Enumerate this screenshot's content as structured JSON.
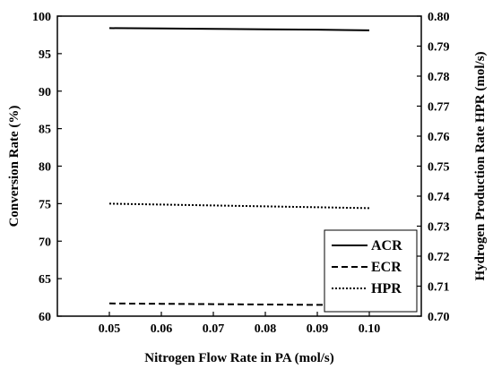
{
  "chart_data": {
    "type": "line",
    "xlabel": "Nitrogen Flow Rate in PA (mol/s)",
    "ylabel_left": "Conversion Rate (%)",
    "ylabel_right": "Hydrogen Production Rate HPR (mol/s)",
    "xlim": [
      0.04,
      0.11
    ],
    "ylim_left": [
      60,
      100
    ],
    "ylim_right": [
      0.7,
      0.8
    ],
    "x_ticks": [
      "0.05",
      "0.06",
      "0.07",
      "0.08",
      "0.09",
      "0.10"
    ],
    "x_tick_values": [
      0.05,
      0.06,
      0.07,
      0.08,
      0.09,
      0.1
    ],
    "y_left_ticks": [
      "60",
      "65",
      "70",
      "75",
      "80",
      "85",
      "90",
      "95",
      "100"
    ],
    "y_left_tick_values": [
      60,
      65,
      70,
      75,
      80,
      85,
      90,
      95,
      100
    ],
    "y_right_ticks": [
      "0.70",
      "0.71",
      "0.72",
      "0.73",
      "0.74",
      "0.75",
      "0.76",
      "0.77",
      "0.78",
      "0.79",
      "0.80"
    ],
    "y_right_tick_values": [
      0.7,
      0.71,
      0.72,
      0.73,
      0.74,
      0.75,
      0.76,
      0.77,
      0.78,
      0.79,
      0.8
    ],
    "grid": false,
    "legend_position": "bottom-right",
    "series": [
      {
        "name": "ACR",
        "axis": "left",
        "style": "solid",
        "x": [
          0.05,
          0.06,
          0.07,
          0.08,
          0.09,
          0.1
        ],
        "y": [
          98.4,
          98.35,
          98.3,
          98.25,
          98.2,
          98.1
        ]
      },
      {
        "name": "ECR",
        "axis": "left",
        "style": "dashed",
        "x": [
          0.05,
          0.06,
          0.07,
          0.08,
          0.09,
          0.1
        ],
        "y": [
          61.7,
          61.65,
          61.6,
          61.55,
          61.5,
          61.5
        ]
      },
      {
        "name": "HPR",
        "axis": "right",
        "style": "dotted",
        "x": [
          0.05,
          0.06,
          0.07,
          0.08,
          0.09,
          0.1
        ],
        "y": [
          0.7375,
          0.7372,
          0.7369,
          0.7366,
          0.7363,
          0.736
        ]
      }
    ]
  }
}
